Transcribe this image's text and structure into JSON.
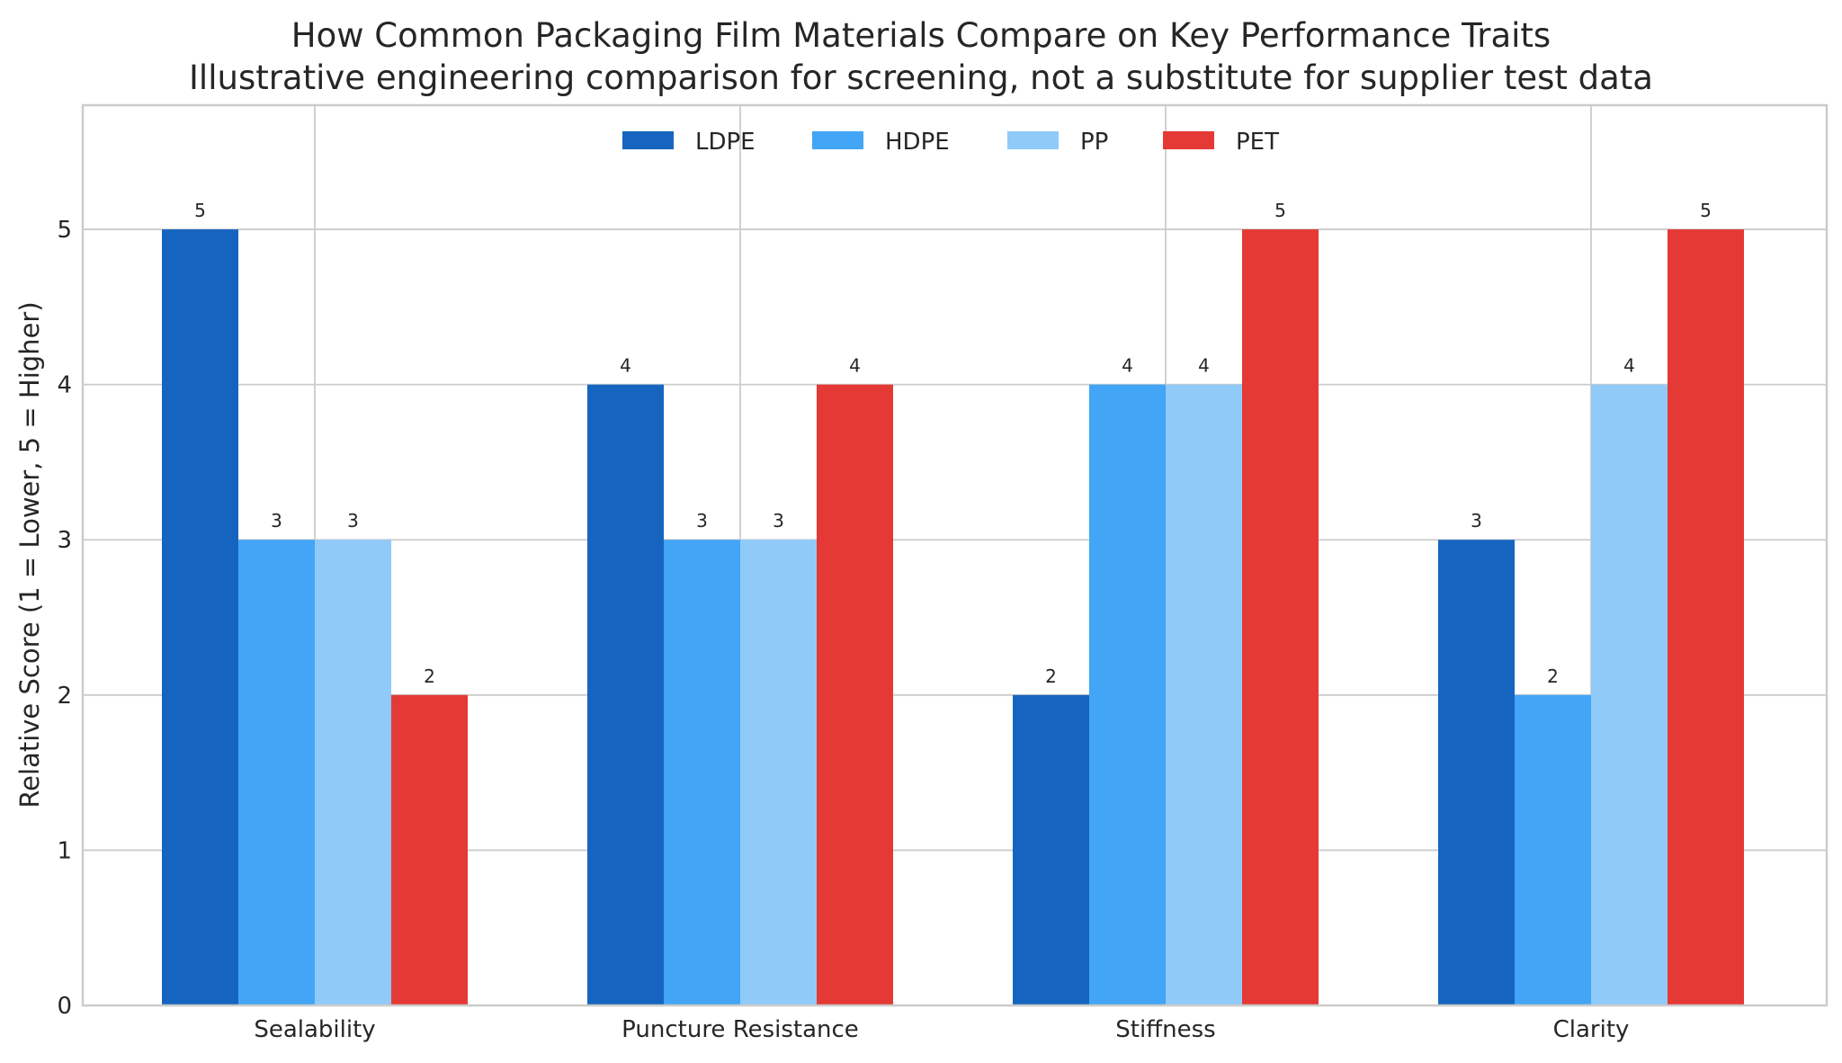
{
  "chart_data": {
    "type": "bar",
    "title": "How Common Packaging Film Materials Compare on Key Performance Traits",
    "subtitle": "Illustrative engineering comparison for screening, not a substitute for supplier test data",
    "xlabel": "",
    "ylabel": "Relative Score (1 = Lower, 5 = Higher)",
    "categories": [
      "Sealability",
      "Puncture Resistance",
      "Stiffness",
      "Clarity"
    ],
    "series": [
      {
        "name": "LDPE",
        "values": [
          5,
          4,
          2,
          3
        ],
        "color": "#1565c0"
      },
      {
        "name": "HDPE",
        "values": [
          3,
          3,
          4,
          2
        ],
        "color": "#42a5f5"
      },
      {
        "name": "PP",
        "values": [
          3,
          3,
          4,
          4
        ],
        "color": "#90caf9"
      },
      {
        "name": "PET",
        "values": [
          2,
          4,
          5,
          5
        ],
        "color": "#e53935"
      }
    ],
    "ylim": [
      0,
      5.8
    ],
    "yticks": [
      "0",
      "1",
      "2",
      "3",
      "4",
      "5"
    ],
    "grid": true,
    "legend_position": "top-center",
    "data_labels": true
  }
}
